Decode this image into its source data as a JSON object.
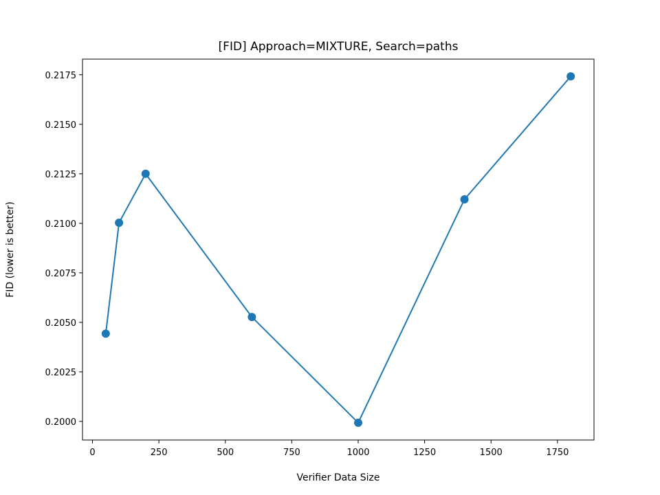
{
  "chart_data": {
    "type": "line",
    "title": "[FID] Approach=MIXTURE, Search=paths",
    "xlabel": "Verifier Data Size",
    "ylabel": "FID (lower is better)",
    "x": [
      50,
      100,
      200,
      600,
      1000,
      1400,
      1800
    ],
    "series": [
      {
        "name": "",
        "values": [
          0.20443,
          0.21003,
          0.2125,
          0.20527,
          0.19993,
          0.21121,
          0.21742
        ]
      }
    ],
    "xlim": [
      -37.5,
      1887.5
    ],
    "ylim": [
      0.19906,
      0.21829
    ],
    "xticks": [
      0,
      250,
      500,
      750,
      1000,
      1250,
      1500,
      1750
    ],
    "xtick_labels": [
      "0",
      "250",
      "500",
      "750",
      "1000",
      "1250",
      "1500",
      "1750"
    ],
    "yticks": [
      0.2,
      0.2025,
      0.205,
      0.2075,
      0.21,
      0.2125,
      0.215,
      0.2175
    ],
    "ytick_labels": [
      "0.2000",
      "0.2025",
      "0.2050",
      "0.2075",
      "0.2100",
      "0.2125",
      "0.2150",
      "0.2175"
    ],
    "grid": false,
    "marker": "circle",
    "color": "#1f77b4"
  }
}
